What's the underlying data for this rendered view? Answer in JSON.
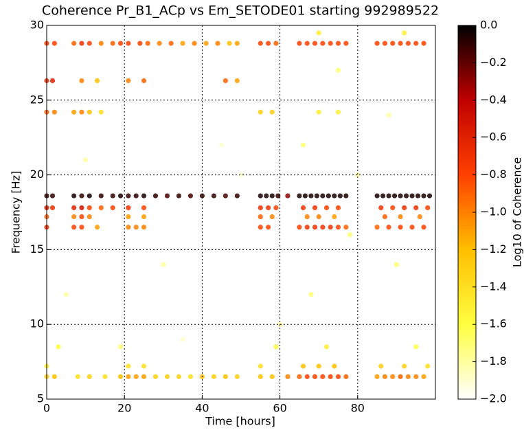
{
  "chart_data": {
    "type": "scatter",
    "title": "Coherence Pr_B1_ACp vs Em_SETODE01 starting 992989522",
    "xlabel": "Time [hours]",
    "ylabel": "Frequency [Hz]",
    "colorbar_label": "Log10 of Coherence",
    "xlim": [
      0,
      100
    ],
    "ylim": [
      5,
      30
    ],
    "xticks": [
      0,
      20,
      40,
      60,
      80
    ],
    "yticks": [
      5,
      10,
      15,
      20,
      25,
      30
    ],
    "grid": true,
    "clim": [
      -2,
      0
    ],
    "colormap": [
      "#ffffff",
      "#ffff40",
      "#ffbf00",
      "#ff4000",
      "#c00000",
      "#000000"
    ],
    "cticks": [
      {
        "value": 0,
        "label": "0.0"
      },
      {
        "value": -0.2,
        "label": "−0.2"
      },
      {
        "value": -0.4,
        "label": "−0.4"
      },
      {
        "value": -0.6,
        "label": "−0.6"
      },
      {
        "value": -0.8,
        "label": "−0.8"
      },
      {
        "value": -1.0,
        "label": "−1.0"
      },
      {
        "value": -1.2,
        "label": "−1.2"
      },
      {
        "value": -1.4,
        "label": "−1.4"
      },
      {
        "value": -1.6,
        "label": "−1.6"
      },
      {
        "value": -1.8,
        "label": "−1.8"
      },
      {
        "value": -2.0,
        "label": "−2.0"
      }
    ],
    "x": [
      0,
      1.5,
      7,
      9,
      11,
      14,
      17,
      19,
      21,
      23,
      25,
      28,
      31,
      34,
      37,
      40,
      43,
      46,
      49,
      55,
      56.5,
      58,
      59.5,
      62,
      65,
      66.5,
      68,
      69.5,
      71,
      72.5,
      74,
      75.5,
      77,
      85,
      86.5,
      88,
      89.5,
      91,
      92.5,
      94,
      95.5,
      97,
      98.5,
      0,
      1.5,
      7,
      9,
      11,
      14,
      17,
      21,
      25,
      55,
      57,
      59,
      66,
      69,
      72,
      75,
      86,
      89,
      92,
      95,
      98,
      0,
      7,
      9,
      11,
      21,
      25,
      55,
      58,
      67,
      70,
      74,
      87,
      91,
      96,
      0,
      7,
      9,
      13,
      21,
      23,
      25,
      55,
      57,
      65,
      67,
      69,
      71,
      73,
      75,
      77,
      85,
      88,
      91,
      94,
      97,
      0,
      2,
      7,
      9,
      11,
      14,
      17,
      19,
      21,
      24,
      26,
      29,
      32,
      35,
      38,
      41,
      44,
      47,
      49,
      55,
      57,
      59,
      65,
      67,
      69,
      71,
      73,
      75,
      77,
      85,
      87,
      89,
      91,
      93,
      95,
      97,
      0,
      1.5,
      9,
      13,
      21,
      25,
      46,
      49,
      0,
      2,
      7,
      9,
      11,
      14,
      55,
      58,
      70,
      75,
      0,
      2,
      8,
      11,
      15,
      19,
      21,
      23,
      25,
      28,
      31,
      34,
      37,
      40,
      43,
      46,
      49,
      55,
      58,
      62,
      65,
      67,
      69,
      71,
      73,
      75,
      77,
      85,
      87,
      89,
      91,
      93,
      95,
      97,
      0,
      21,
      25,
      55,
      66,
      70,
      74,
      86,
      92,
      98,
      5,
      30,
      45,
      68,
      80,
      90,
      60,
      35,
      10,
      75,
      88,
      50,
      3,
      72,
      95,
      19,
      59,
      70,
      92,
      66,
      78
    ],
    "y": [
      18.6,
      18.6,
      18.6,
      18.6,
      18.6,
      18.6,
      18.6,
      18.6,
      18.6,
      18.6,
      18.6,
      18.6,
      18.6,
      18.6,
      18.6,
      18.6,
      18.6,
      18.6,
      18.6,
      18.6,
      18.6,
      18.6,
      18.6,
      18.6,
      18.6,
      18.6,
      18.6,
      18.6,
      18.6,
      18.6,
      18.6,
      18.6,
      18.6,
      18.6,
      18.6,
      18.6,
      18.6,
      18.6,
      18.6,
      18.6,
      18.6,
      18.6,
      18.6,
      17.8,
      17.8,
      17.8,
      17.8,
      17.8,
      17.8,
      17.8,
      17.8,
      17.8,
      17.8,
      17.8,
      17.8,
      17.8,
      17.8,
      17.8,
      17.8,
      17.8,
      17.8,
      17.8,
      17.8,
      17.8,
      17.2,
      17.2,
      17.2,
      17.2,
      17.2,
      17.2,
      17.2,
      17.2,
      17.2,
      17.2,
      17.2,
      17.2,
      17.2,
      17.2,
      16.5,
      16.5,
      16.5,
      16.5,
      16.5,
      16.5,
      16.5,
      16.5,
      16.5,
      16.5,
      16.5,
      16.5,
      16.5,
      16.5,
      16.5,
      16.5,
      16.5,
      16.5,
      16.5,
      16.5,
      16.5,
      28.8,
      28.8,
      28.8,
      28.8,
      28.8,
      28.8,
      28.8,
      28.8,
      28.8,
      28.8,
      28.8,
      28.8,
      28.8,
      28.8,
      28.8,
      28.8,
      28.8,
      28.8,
      28.8,
      28.8,
      28.8,
      28.8,
      28.8,
      28.8,
      28.8,
      28.8,
      28.8,
      28.8,
      28.8,
      28.8,
      28.8,
      28.8,
      28.8,
      28.8,
      28.8,
      28.8,
      26.3,
      26.3,
      26.3,
      26.3,
      26.3,
      26.3,
      26.3,
      26.3,
      24.2,
      24.2,
      24.2,
      24.2,
      24.2,
      24.2,
      24.2,
      24.2,
      24.2,
      24.2,
      6.5,
      6.5,
      6.5,
      6.5,
      6.5,
      6.5,
      6.5,
      6.5,
      6.5,
      6.5,
      6.5,
      6.5,
      6.5,
      6.5,
      6.5,
      6.5,
      6.5,
      6.5,
      6.5,
      6.5,
      6.5,
      6.5,
      6.5,
      6.5,
      6.5,
      6.5,
      6.5,
      6.5,
      6.5,
      6.5,
      6.5,
      6.5,
      6.5,
      6.5,
      7.2,
      7.2,
      7.2,
      7.2,
      7.2,
      7.2,
      7.2,
      7.2,
      7.2,
      7.2,
      12,
      14,
      22,
      12,
      20,
      14,
      10,
      9,
      21,
      27,
      24,
      20,
      8.5,
      8.5,
      8.5,
      8.5,
      8.5,
      29.5,
      29.5,
      22,
      16
    ],
    "values": [
      -0.1,
      -0.1,
      -0.05,
      -0.1,
      -0.05,
      -0.1,
      -0.1,
      -0.05,
      -0.1,
      -0.1,
      -0.05,
      -0.1,
      -0.15,
      -0.1,
      -0.15,
      -0.1,
      -0.1,
      -0.15,
      -0.1,
      -0.05,
      -0.05,
      -0.05,
      -0.1,
      -0.3,
      -0.05,
      -0.05,
      -0.05,
      -0.05,
      -0.05,
      -0.05,
      -0.05,
      -0.05,
      -0.05,
      -0.05,
      -0.05,
      -0.05,
      -0.05,
      -0.05,
      -0.05,
      -0.05,
      -0.05,
      -0.05,
      -0.05,
      -0.6,
      -0.7,
      -0.6,
      -0.5,
      -0.8,
      -0.9,
      -0.8,
      -0.7,
      -0.8,
      -0.7,
      -0.7,
      -0.8,
      -0.7,
      -0.7,
      -0.8,
      -0.8,
      -0.7,
      -0.8,
      -0.7,
      -0.7,
      -0.8,
      -0.9,
      -1.0,
      -0.8,
      -1.0,
      -1.1,
      -1.1,
      -0.9,
      -1.0,
      -1.0,
      -1.0,
      -1.1,
      -0.9,
      -1.0,
      -1.0,
      -0.7,
      -0.8,
      -0.8,
      -1.1,
      -1.0,
      -1.0,
      -1.0,
      -0.8,
      -0.8,
      -0.8,
      -0.7,
      -0.7,
      -0.7,
      -0.7,
      -0.8,
      -0.9,
      -0.9,
      -0.8,
      -0.8,
      -0.8,
      -0.8,
      -0.8,
      -0.8,
      -0.9,
      -0.7,
      -0.8,
      -1.0,
      -0.9,
      -0.8,
      -0.8,
      -0.8,
      -0.9,
      -1.0,
      -0.9,
      -1.1,
      -1.0,
      -1.1,
      -1.0,
      -1.2,
      -1.1,
      -0.8,
      -0.8,
      -0.9,
      -0.8,
      -0.8,
      -0.8,
      -0.8,
      -0.8,
      -0.8,
      -0.8,
      -0.8,
      -0.8,
      -0.8,
      -0.8,
      -0.8,
      -0.8,
      -0.8,
      -0.7,
      -0.6,
      -1.0,
      -1.2,
      -1.0,
      -0.9,
      -0.9,
      -1.1,
      -0.9,
      -1.0,
      -1.1,
      -1.0,
      -1.2,
      -1.4,
      -1.3,
      -1.3,
      -1.5,
      -1.5,
      -1.3,
      -1.2,
      -1.4,
      -1.3,
      -1.4,
      -1.2,
      -1.1,
      -1.1,
      -1.1,
      -1.3,
      -1.3,
      -1.3,
      -1.4,
      -1.2,
      -1.3,
      -1.2,
      -1.3,
      -1.2,
      -1.2,
      -1.0,
      -0.9,
      -0.8,
      -0.8,
      -0.8,
      -0.8,
      -0.8,
      -0.9,
      -1.1,
      -1.0,
      -1.0,
      -0.9,
      -1.0,
      -1.0,
      -1.1,
      -1.5,
      -1.4,
      -1.4,
      -1.4,
      -1.2,
      -1.2,
      -1.2,
      -1.3,
      -1.3,
      -1.4,
      -1.8,
      -1.8,
      -1.9,
      -1.7,
      -1.8,
      -1.7,
      -1.8,
      -1.9,
      -1.8,
      -1.7,
      -1.8,
      -1.9,
      -1.6,
      -1.5,
      -1.6,
      -1.7,
      -1.6,
      -1.5,
      -1.5,
      -1.7,
      -1.7
    ]
  }
}
